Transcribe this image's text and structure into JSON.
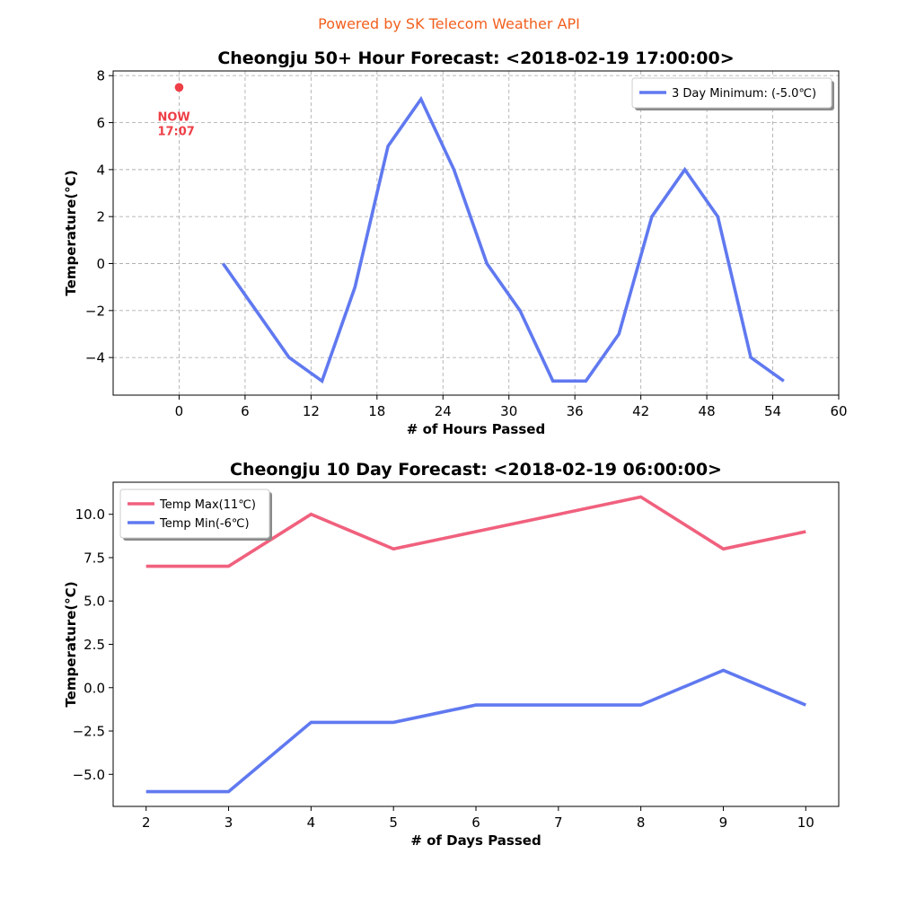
{
  "credit": "Powered by SK Telecom Weather API",
  "colors": {
    "credit": "#f2601f",
    "min_line": "#6079f0",
    "max_line": "#f0617e",
    "now_marker": "#ee3e46",
    "grid": "#b0b0b0"
  },
  "chart_data": [
    {
      "type": "line",
      "title": "Cheongju 50+ Hour Forecast: <2018-02-19 17:00:00>",
      "xlabel": "# of Hours Passed",
      "ylabel": "Temperature(°C)",
      "xlim": [
        -6,
        60
      ],
      "ylim": [
        -5.6,
        8.2
      ],
      "xticks": [
        0,
        6,
        12,
        18,
        24,
        30,
        36,
        42,
        48,
        54,
        60
      ],
      "yticks": [
        -4,
        -2,
        0,
        2,
        4,
        6,
        8
      ],
      "grid": true,
      "legend_position": "top-right",
      "series": [
        {
          "name": "3 Day Minimum: (-5.0℃)",
          "color": "#6079f0",
          "x": [
            4,
            7,
            10,
            13,
            16,
            19,
            22,
            25,
            28,
            31,
            34,
            37,
            40,
            43,
            46,
            49,
            52,
            55
          ],
          "y": [
            0,
            -2,
            -4,
            -5,
            -1,
            5,
            7,
            4,
            0,
            -2,
            -5,
            -5,
            -3,
            2,
            4,
            2,
            -4,
            -5
          ]
        }
      ],
      "annotations": [
        {
          "x": 0,
          "y": 7.5,
          "lines": [
            "NOW",
            "17:07"
          ],
          "color": "#ee3e46"
        }
      ]
    },
    {
      "type": "line",
      "title": "Cheongju 10 Day Forecast: <2018-02-19 06:00:00>",
      "xlabel": "# of Days Passed",
      "ylabel": "Temperature(°C)",
      "xlim": [
        1.6,
        10.4
      ],
      "ylim": [
        -6.85,
        11.85
      ],
      "xticks": [
        2,
        3,
        4,
        5,
        6,
        7,
        8,
        9,
        10
      ],
      "yticks": [
        -5.0,
        -2.5,
        0.0,
        2.5,
        5.0,
        7.5,
        10.0
      ],
      "yticklabels": [
        "−5.0",
        "−2.5",
        "0.0",
        "2.5",
        "5.0",
        "7.5",
        "10.0"
      ],
      "grid": false,
      "legend_position": "top-left",
      "series": [
        {
          "name": "Temp Max(11℃)",
          "color": "#f0617e",
          "x": [
            2,
            3,
            4,
            5,
            6,
            7,
            8,
            9,
            10
          ],
          "y": [
            7,
            7,
            10,
            8,
            9,
            10,
            11,
            8,
            9
          ]
        },
        {
          "name": "Temp Min(-6℃)",
          "color": "#6079f0",
          "x": [
            2,
            3,
            4,
            5,
            6,
            7,
            8,
            9,
            10
          ],
          "y": [
            -6,
            -6,
            -2,
            -2,
            -1,
            -1,
            -1,
            1,
            -1
          ]
        }
      ]
    }
  ]
}
